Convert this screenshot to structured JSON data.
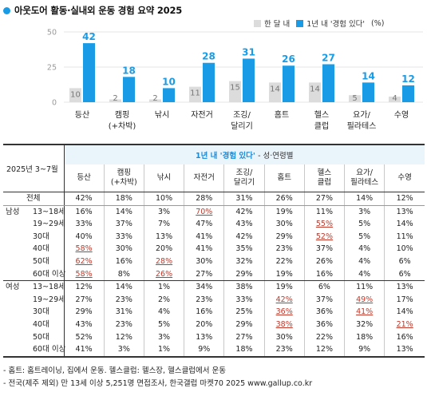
{
  "title": "아웃도어 활동·실내외 운동 경험 요약 2025",
  "legend": {
    "items": [
      {
        "label": "한 달 내",
        "color": "#dcdcdc"
      },
      {
        "label": "1년 내 '경험 있다'",
        "color": "#1a9be6"
      }
    ],
    "unit": "(%)"
  },
  "colors": {
    "accent": "#1a9be6",
    "light": "#dcdcdc",
    "highlight": "#c0392b"
  },
  "chart_data": {
    "type": "bar",
    "categories": [
      "등산",
      "캠핑\n(+차박)",
      "낚시",
      "자전거",
      "조깅/\n달리기",
      "홈트",
      "헬스\n클럽",
      "요가/\n필라테스",
      "수영"
    ],
    "series": [
      {
        "name": "한 달 내",
        "values": [
          10,
          2,
          2,
          11,
          15,
          14,
          14,
          5,
          4
        ]
      },
      {
        "name": "1년 내 '경험 있다'",
        "values": [
          42,
          18,
          10,
          28,
          31,
          26,
          27,
          14,
          12
        ]
      }
    ],
    "yticks": [
      0,
      25,
      50
    ],
    "ylim": [
      0,
      50
    ],
    "grid": true
  },
  "table": {
    "year_label": "2025년 3~7월",
    "header_main": "1년 내 '경험 있다'",
    "header_sub": "- 성·연령별",
    "columns": [
      "등산",
      "캠핑\n(+차박)",
      "낚시",
      "자전거",
      "조깅/\n달리기",
      "홈트",
      "헬스\n클럽",
      "요가/\n필라테스",
      "수영"
    ],
    "rows": [
      {
        "group": "",
        "label": "전체",
        "values": [
          "42%",
          "18%",
          "10%",
          "28%",
          "31%",
          "26%",
          "27%",
          "14%",
          "12%"
        ],
        "hl": []
      },
      {
        "group": "남성",
        "label": "13~18세",
        "values": [
          "16%",
          "14%",
          "3%",
          "70%",
          "42%",
          "19%",
          "11%",
          "3%",
          "13%"
        ],
        "hl": [
          3
        ]
      },
      {
        "group": "",
        "label": "19~29세",
        "values": [
          "33%",
          "37%",
          "7%",
          "47%",
          "43%",
          "30%",
          "55%",
          "5%",
          "14%"
        ],
        "hl": [
          6
        ]
      },
      {
        "group": "",
        "label": "30대",
        "values": [
          "40%",
          "33%",
          "13%",
          "41%",
          "42%",
          "29%",
          "52%",
          "5%",
          "11%"
        ],
        "hl": [
          6
        ]
      },
      {
        "group": "",
        "label": "40대",
        "values": [
          "58%",
          "30%",
          "20%",
          "41%",
          "35%",
          "23%",
          "37%",
          "4%",
          "10%"
        ],
        "hl": [
          0
        ]
      },
      {
        "group": "",
        "label": "50대",
        "values": [
          "62%",
          "16%",
          "28%",
          "30%",
          "32%",
          "22%",
          "26%",
          "4%",
          "6%"
        ],
        "hl": [
          0,
          2
        ]
      },
      {
        "group": "",
        "label": "60대 이상",
        "values": [
          "58%",
          "8%",
          "26%",
          "27%",
          "29%",
          "19%",
          "16%",
          "4%",
          "6%"
        ],
        "hl": [
          0,
          2
        ]
      },
      {
        "group": "여성",
        "label": "13~18세",
        "values": [
          "12%",
          "14%",
          "1%",
          "34%",
          "38%",
          "19%",
          "6%",
          "11%",
          "13%"
        ],
        "hl": []
      },
      {
        "group": "",
        "label": "19~29세",
        "values": [
          "27%",
          "23%",
          "2%",
          "23%",
          "33%",
          "42%",
          "37%",
          "49%",
          "17%"
        ],
        "hl": [
          5,
          7
        ]
      },
      {
        "group": "",
        "label": "30대",
        "values": [
          "29%",
          "31%",
          "4%",
          "16%",
          "25%",
          "36%",
          "36%",
          "41%",
          "14%"
        ],
        "hl": [
          5,
          7
        ]
      },
      {
        "group": "",
        "label": "40대",
        "values": [
          "43%",
          "23%",
          "5%",
          "20%",
          "29%",
          "38%",
          "36%",
          "32%",
          "21%"
        ],
        "hl": [
          5,
          8
        ]
      },
      {
        "group": "",
        "label": "50대",
        "values": [
          "52%",
          "12%",
          "3%",
          "13%",
          "27%",
          "30%",
          "22%",
          "18%",
          "16%"
        ],
        "hl": []
      },
      {
        "group": "",
        "label": "60대 이상",
        "values": [
          "41%",
          "3%",
          "1%",
          "9%",
          "18%",
          "23%",
          "12%",
          "9%",
          "13%"
        ],
        "hl": []
      }
    ]
  },
  "notes": [
    "- 홈트: 홈트레이닝, 집에서 운동. 헬스클럽: 헬스장, 헬스클럽에서 운동",
    "- 전국(제주 제외) 만 13세 이상 5,251명 면접조사, 한국갤럽 마켓70 2025 www.gallup.co.kr"
  ]
}
